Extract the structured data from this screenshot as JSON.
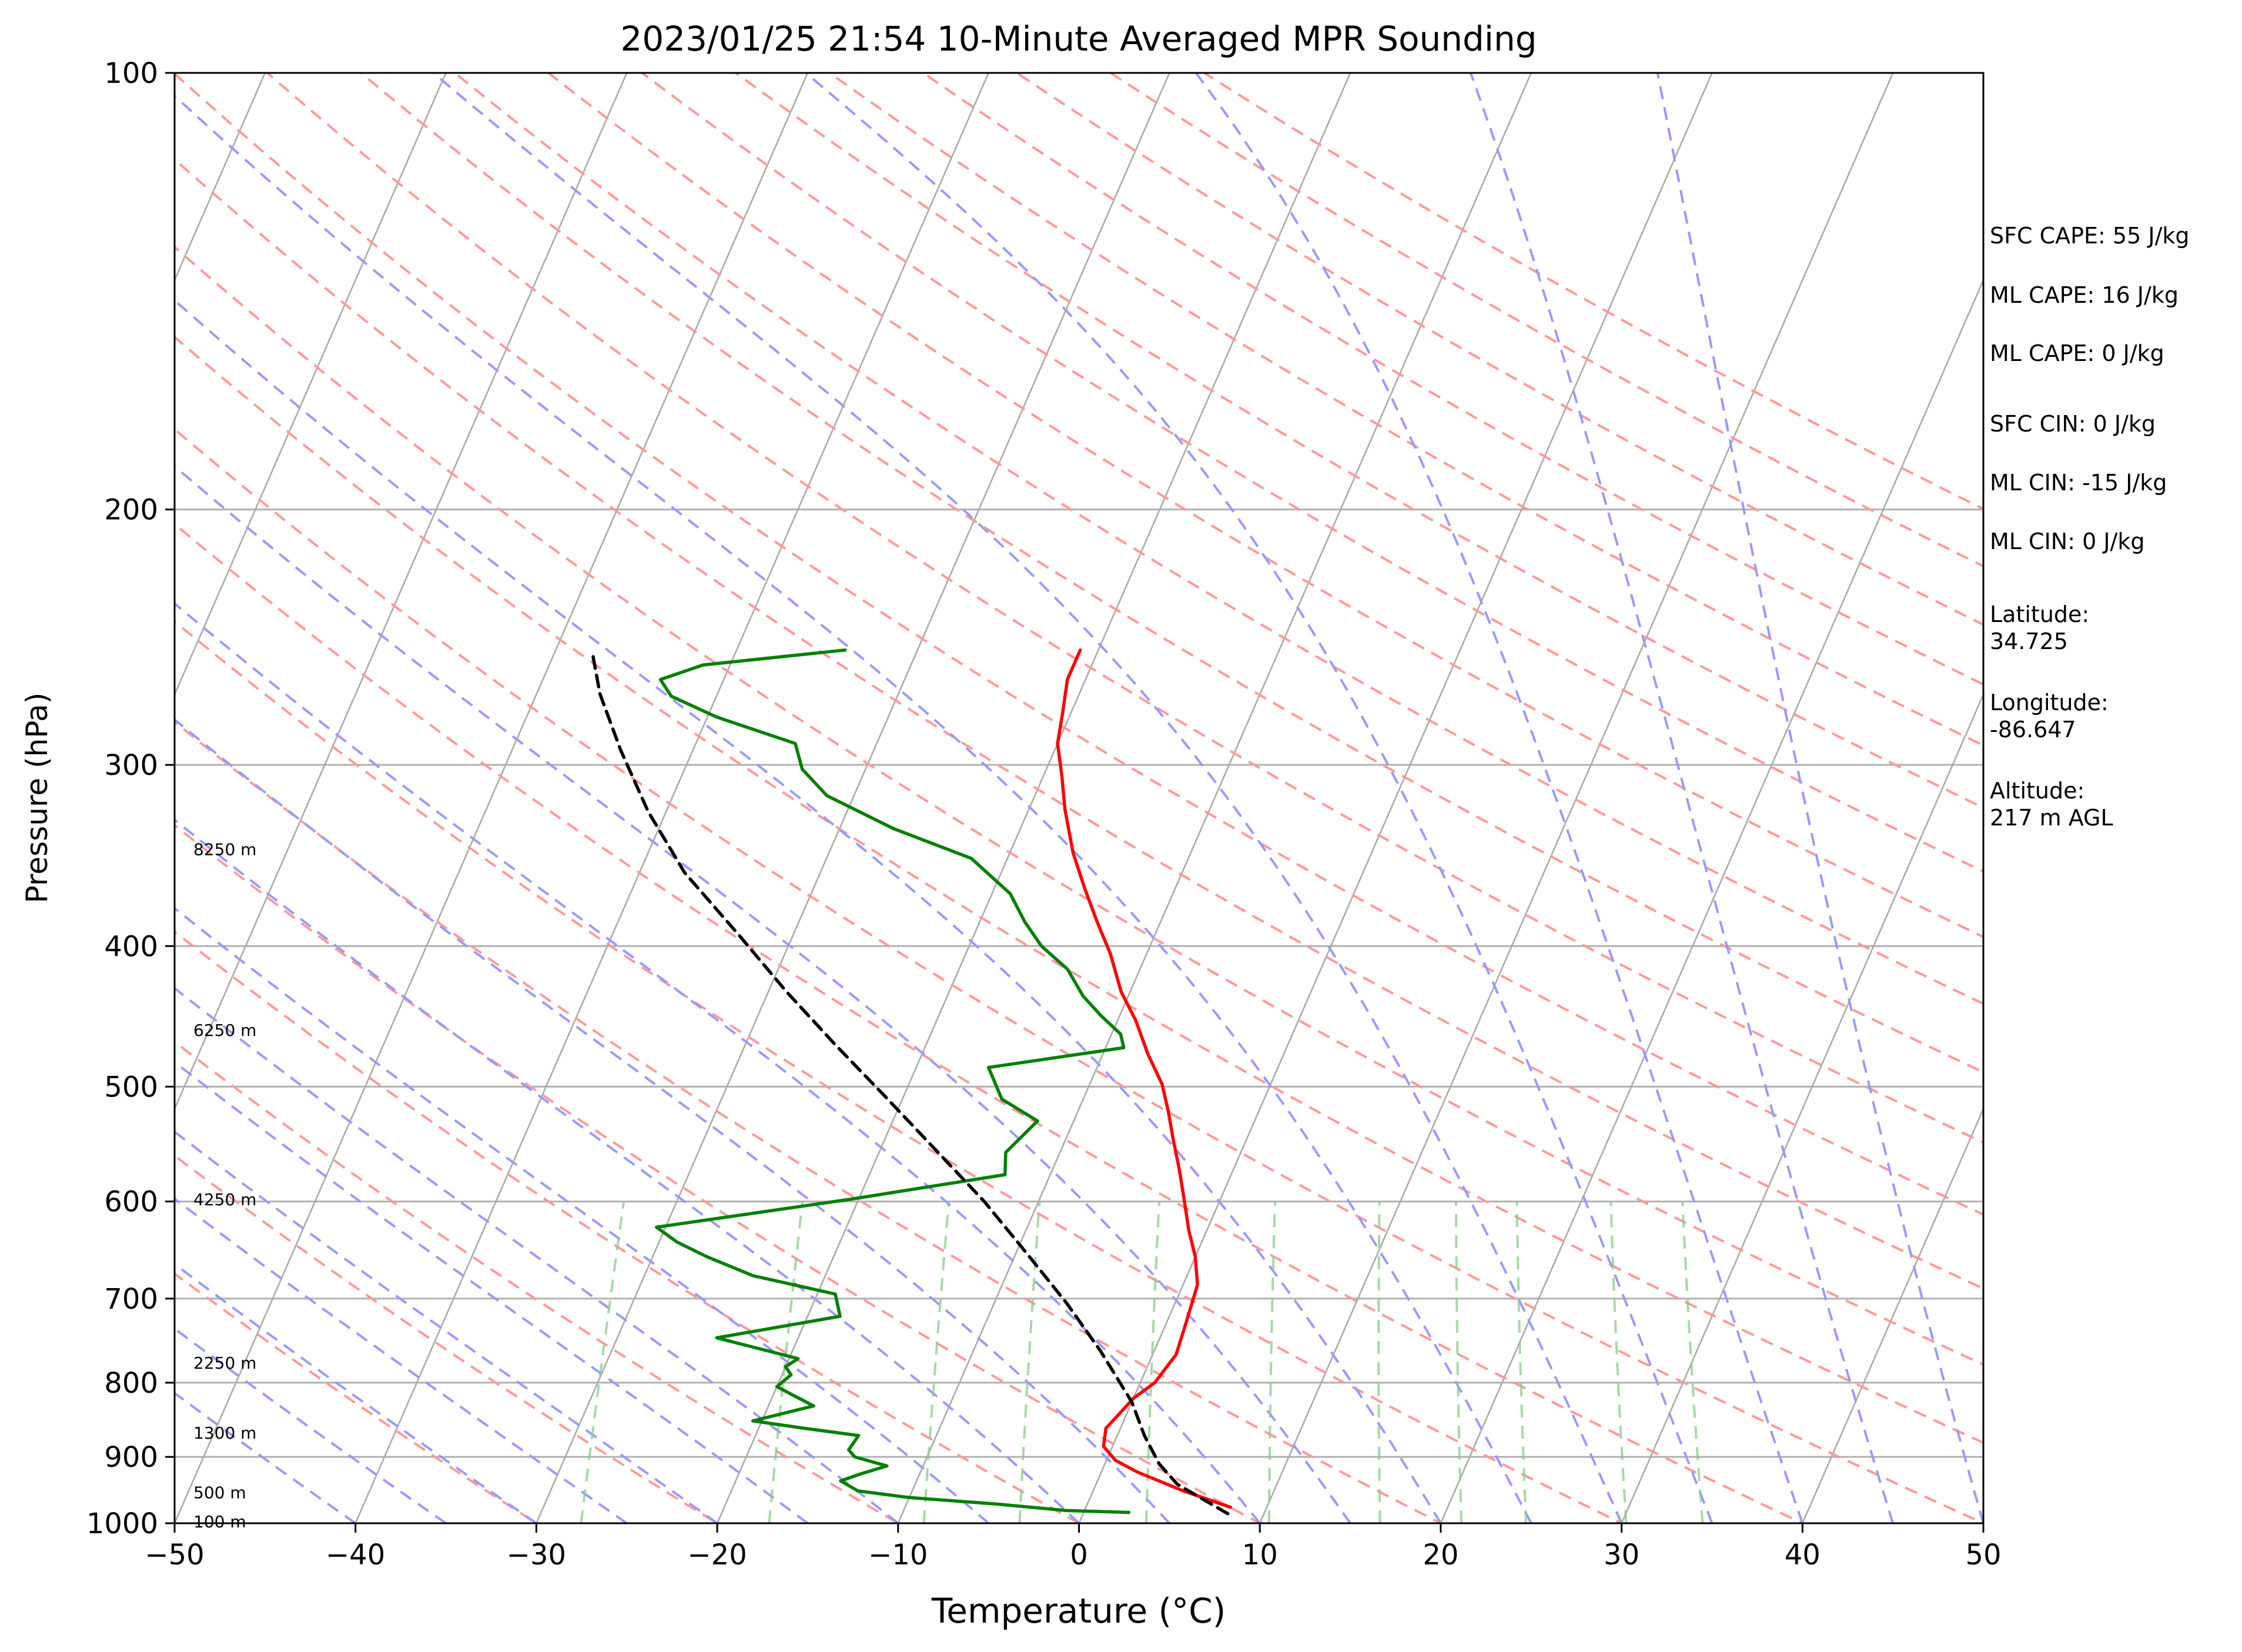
{
  "chart_data": {
    "type": "line",
    "title": "2023/01/25 21:54 10-Minute Averaged MPR Sounding",
    "xlabel": "Temperature (°C)",
    "ylabel": "Pressure (hPa)",
    "xlim": [
      -50,
      50
    ],
    "ylim": [
      1000,
      100
    ],
    "y_scale": "log",
    "skew": "skew-T log-p",
    "x_ticks": [
      "−50",
      "−40",
      "−30",
      "−20",
      "−10",
      "0",
      "10",
      "20",
      "30",
      "40",
      "50"
    ],
    "x_tick_values": [
      -50,
      -40,
      -30,
      -20,
      -10,
      0,
      10,
      20,
      30,
      40,
      50
    ],
    "y_ticks": [
      "100",
      "200",
      "300",
      "400",
      "500",
      "600",
      "700",
      "800",
      "900",
      "1000"
    ],
    "y_tick_values": [
      100,
      200,
      300,
      400,
      500,
      600,
      700,
      800,
      900,
      1000
    ],
    "height_labels": [
      {
        "text": "100 m",
        "p": 997
      },
      {
        "text": "500 m",
        "p": 952
      },
      {
        "text": "1300 m",
        "p": 866
      },
      {
        "text": "2250 m",
        "p": 775
      },
      {
        "text": "4250 m",
        "p": 598
      },
      {
        "text": "6250 m",
        "p": 457
      },
      {
        "text": "8250 m",
        "p": 343
      }
    ],
    "series": [
      {
        "color": "#ff0000",
        "points": [
          [
            8.0,
            975
          ],
          [
            5.0,
            950
          ],
          [
            2.0,
            922
          ],
          [
            0.5,
            905
          ],
          [
            -0.5,
            885
          ],
          [
            -0.8,
            860
          ],
          [
            -0.5,
            845
          ],
          [
            0.0,
            820
          ],
          [
            0.8,
            800
          ],
          [
            1.3,
            765
          ],
          [
            1.1,
            730
          ],
          [
            0.8,
            685
          ],
          [
            0.0,
            655
          ],
          [
            -1.0,
            628
          ],
          [
            -2.0,
            598
          ],
          [
            -3.0,
            570
          ],
          [
            -4.0,
            545
          ],
          [
            -5.0,
            520
          ],
          [
            -6.0,
            498
          ],
          [
            -7.5,
            475
          ],
          [
            -9.0,
            450
          ],
          [
            -10.5,
            430
          ],
          [
            -12.0,
            405
          ],
          [
            -13.5,
            385
          ],
          [
            -15.0,
            365
          ],
          [
            -16.5,
            345
          ],
          [
            -18.0,
            322
          ],
          [
            -19.0,
            305
          ],
          [
            -20.0,
            290
          ],
          [
            -20.5,
            275
          ],
          [
            -21.0,
            262
          ],
          [
            -21.0,
            250
          ]
        ]
      },
      {
        "color": "#008000",
        "points": [
          [
            2.5,
            983
          ],
          [
            -1.0,
            980
          ],
          [
            -5.0,
            970
          ],
          [
            -10.0,
            960
          ],
          [
            -13.0,
            950
          ],
          [
            -14.2,
            935
          ],
          [
            -13.3,
            925
          ],
          [
            -12.0,
            913
          ],
          [
            -14.0,
            900
          ],
          [
            -14.5,
            890
          ],
          [
            -14.3,
            870
          ],
          [
            -17.5,
            860
          ],
          [
            -20.5,
            850
          ],
          [
            -17.5,
            830
          ],
          [
            -19.0,
            815
          ],
          [
            -20.0,
            805
          ],
          [
            -19.5,
            790
          ],
          [
            -20.0,
            780
          ],
          [
            -19.5,
            770
          ],
          [
            -24.5,
            745
          ],
          [
            -18.2,
            720
          ],
          [
            -19.0,
            695
          ],
          [
            -24.0,
            675
          ],
          [
            -27.0,
            655
          ],
          [
            -29.0,
            640
          ],
          [
            -30.5,
            625
          ],
          [
            -25.0,
            610
          ],
          [
            -20.5,
            598
          ],
          [
            -12.5,
            575
          ],
          [
            -13.0,
            555
          ],
          [
            -12.0,
            528
          ],
          [
            -14.5,
            510
          ],
          [
            -16.0,
            485
          ],
          [
            -9.0,
            470
          ],
          [
            -9.5,
            460
          ],
          [
            -11.0,
            447
          ],
          [
            -12.5,
            433
          ],
          [
            -14.0,
            415
          ],
          [
            -16.0,
            400
          ],
          [
            -17.5,
            385
          ],
          [
            -19.0,
            368
          ],
          [
            -22.0,
            348
          ],
          [
            -27.0,
            332
          ],
          [
            -31.5,
            315
          ],
          [
            -33.5,
            302
          ],
          [
            -34.5,
            290
          ],
          [
            -39.5,
            278
          ],
          [
            -42.5,
            269
          ],
          [
            -43.5,
            262
          ],
          [
            -41.5,
            256
          ],
          [
            -34.0,
            250
          ]
        ]
      },
      {
        "color": "#000000",
        "dashed": true,
        "points": [
          [
            8.0,
            985
          ],
          [
            4.5,
            940
          ],
          [
            3.0,
            910
          ],
          [
            1.5,
            870
          ],
          [
            0.0,
            825
          ],
          [
            -3.0,
            760
          ],
          [
            -6.0,
            705
          ],
          [
            -9.5,
            650
          ],
          [
            -13.0,
            600
          ],
          [
            -17.0,
            552
          ],
          [
            -21.0,
            508
          ],
          [
            -25.0,
            468
          ],
          [
            -29.0,
            430
          ],
          [
            -33.0,
            393
          ],
          [
            -37.5,
            356
          ],
          [
            -41.0,
            323
          ],
          [
            -44.0,
            293
          ],
          [
            -46.5,
            268
          ],
          [
            -48.0,
            250
          ]
        ]
      }
    ],
    "reference_lines": {
      "isotherms_color": "#aaaaaa",
      "dry_adiabats_color": "#ff9999",
      "moist_adiabats_color": "#9999ff",
      "mixing_ratio_color": "#88cc88"
    },
    "grid": true
  },
  "side_info": {
    "sfc_cape": "SFC CAPE: 55 J/kg",
    "ml_cape_1": "ML CAPE: 16 J/kg",
    "ml_cape_2": "ML CAPE: 0 J/kg",
    "sfc_cin": "SFC CIN: 0 J/kg",
    "ml_cin_1": "ML CIN: -15 J/kg",
    "ml_cin_2": "ML CIN: 0 J/kg",
    "latitude_label": "Latitude:",
    "latitude_value": "34.725",
    "longitude_label": "Longitude:",
    "longitude_value": "-86.647",
    "altitude_label": "Altitude:",
    "altitude_value": "217 m AGL"
  }
}
